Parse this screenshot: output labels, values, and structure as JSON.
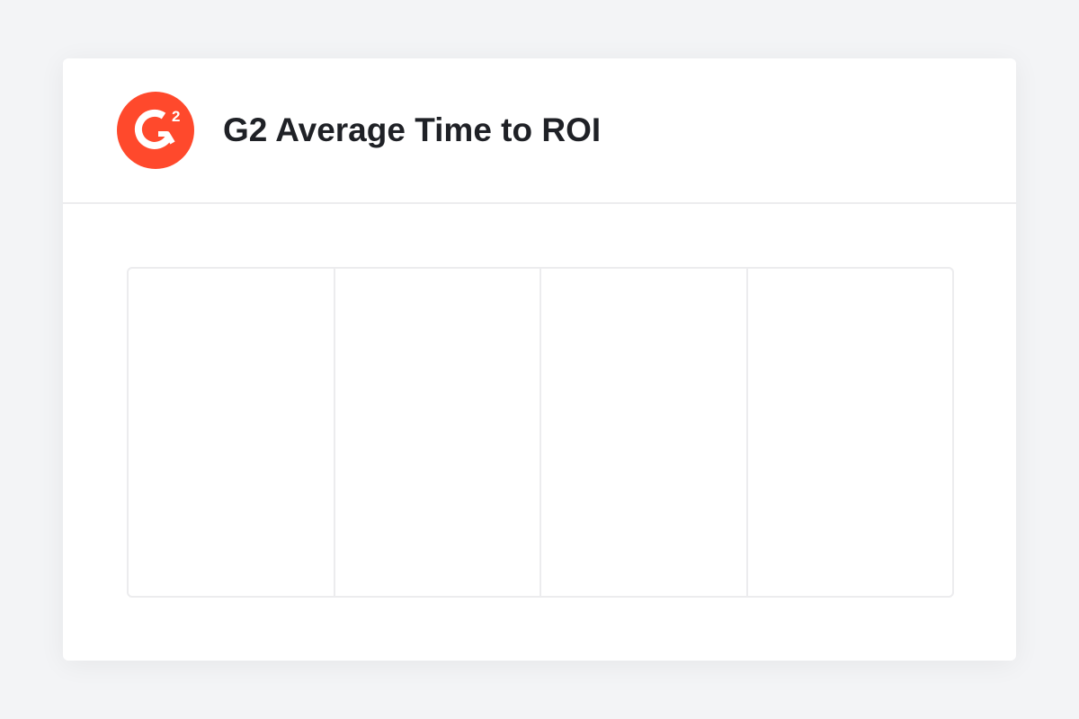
{
  "header": {
    "title": "G2 Average Time to ROI",
    "logo_text": "G2",
    "logo_icon": "g2-logo-icon",
    "brand_color": "#ff492c"
  },
  "panels": [
    {},
    {},
    {},
    {}
  ]
}
